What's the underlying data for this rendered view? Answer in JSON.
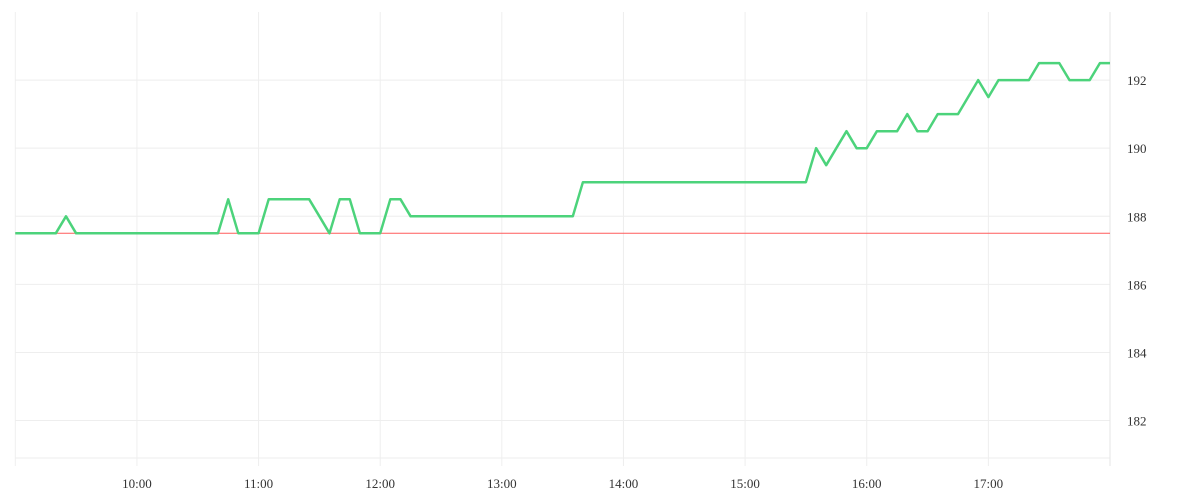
{
  "chart_data": {
    "type": "line",
    "title": "",
    "xlabel": "",
    "ylabel": "",
    "x_ticks": [
      "10:00",
      "11:00",
      "12:00",
      "13:00",
      "14:00",
      "15:00",
      "16:00",
      "17:00"
    ],
    "y_ticks": [
      182,
      184,
      186,
      188,
      190,
      192
    ],
    "xlim": [
      "09:00",
      "18:00"
    ],
    "ylim": [
      180.9,
      194
    ],
    "y_axis_side": "right",
    "grid": true,
    "reference_line": {
      "value": 187.5,
      "color": "#ff5b5b"
    },
    "series": [
      {
        "color": "#4cd37b",
        "x": [
          "09:00",
          "09:05",
          "09:10",
          "09:15",
          "09:20",
          "09:25",
          "09:30",
          "09:35",
          "09:40",
          "09:45",
          "09:50",
          "09:55",
          "10:00",
          "10:05",
          "10:10",
          "10:15",
          "10:20",
          "10:25",
          "10:30",
          "10:35",
          "10:40",
          "10:45",
          "10:50",
          "10:55",
          "11:00",
          "11:05",
          "11:10",
          "11:15",
          "11:20",
          "11:25",
          "11:30",
          "11:35",
          "11:40",
          "11:45",
          "11:50",
          "11:55",
          "12:00",
          "12:05",
          "12:10",
          "12:15",
          "12:20",
          "12:25",
          "12:30",
          "12:35",
          "12:40",
          "12:45",
          "12:50",
          "12:55",
          "13:00",
          "13:05",
          "13:10",
          "13:15",
          "13:20",
          "13:25",
          "13:30",
          "13:35",
          "13:40",
          "13:45",
          "13:50",
          "13:55",
          "14:00",
          "14:05",
          "14:10",
          "14:15",
          "14:20",
          "14:25",
          "14:30",
          "14:35",
          "14:40",
          "14:45",
          "14:50",
          "14:55",
          "15:00",
          "15:05",
          "15:10",
          "15:15",
          "15:20",
          "15:25",
          "15:30",
          "15:35",
          "15:40",
          "15:45",
          "15:50",
          "15:55",
          "16:00",
          "16:05",
          "16:10",
          "16:15",
          "16:20",
          "16:25",
          "16:30",
          "16:35",
          "16:40",
          "16:45",
          "16:50",
          "16:55",
          "17:00",
          "17:05",
          "17:10",
          "17:15",
          "17:20",
          "17:25",
          "17:30",
          "17:35",
          "17:40",
          "17:45",
          "17:50",
          "17:55",
          "18:00"
        ],
        "values": [
          187.5,
          187.5,
          187.5,
          187.5,
          187.5,
          188,
          187.5,
          187.5,
          187.5,
          187.5,
          187.5,
          187.5,
          187.5,
          187.5,
          187.5,
          187.5,
          187.5,
          187.5,
          187.5,
          187.5,
          187.5,
          188.5,
          187.5,
          187.5,
          187.5,
          188.5,
          188.5,
          188.5,
          188.5,
          188.5,
          188,
          187.5,
          188.5,
          188.5,
          187.5,
          187.5,
          187.5,
          188.5,
          188.5,
          188,
          188,
          188,
          188,
          188,
          188,
          188,
          188,
          188,
          188,
          188,
          188,
          188,
          188,
          188,
          188,
          188,
          189,
          189,
          189,
          189,
          189,
          189,
          189,
          189,
          189,
          189,
          189,
          189,
          189,
          189,
          189,
          189,
          189,
          189,
          189,
          189,
          189,
          189,
          189,
          190,
          189.5,
          190,
          190.5,
          190,
          190,
          190.5,
          190.5,
          190.5,
          191,
          190.5,
          190.5,
          191,
          191,
          191,
          191.5,
          192,
          191.5,
          192,
          192,
          192,
          192,
          192.5,
          192.5,
          192.5,
          192,
          192,
          192,
          192.5,
          192.5
        ]
      }
    ]
  }
}
